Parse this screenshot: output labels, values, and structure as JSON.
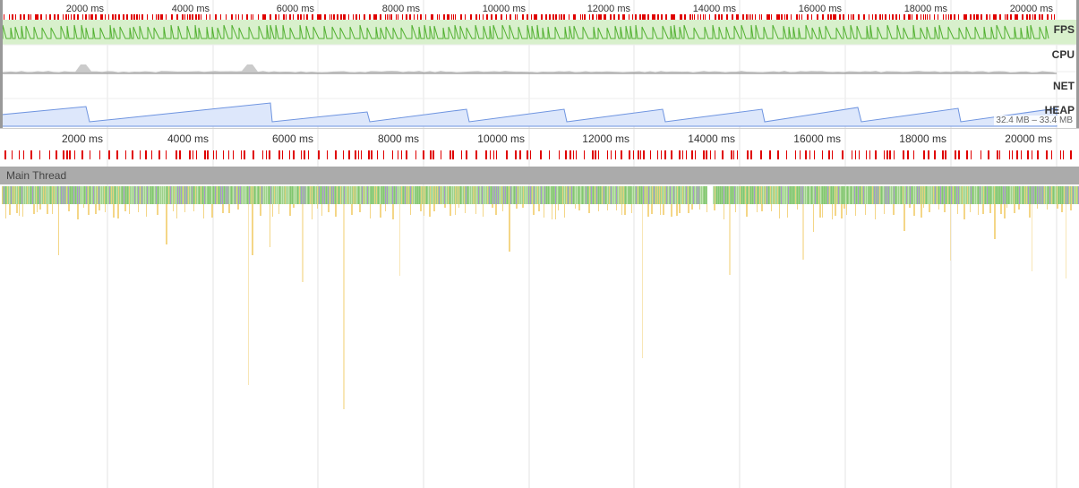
{
  "overview": {
    "ticks": [
      "2000 ms",
      "4000 ms",
      "6000 ms",
      "8000 ms",
      "10000 ms",
      "12000 ms",
      "14000 ms",
      "16000 ms",
      "18000 ms",
      "20000 ms"
    ],
    "tracks": {
      "fps": "FPS",
      "cpu": "CPU",
      "net": "NET",
      "heap": "HEAP"
    },
    "heap_range": "32.4 MB – 33.4 MB",
    "colors": {
      "frames": "#e00000",
      "fps_line": "#51b02f",
      "fps_fill": "#d8f0cc",
      "heap_line": "#6e94e0",
      "heap_fill": "#dde7fb",
      "cpu": "#b5b5b5"
    }
  },
  "main": {
    "ticks": [
      "2000 ms",
      "4000 ms",
      "6000 ms",
      "8000 ms",
      "10000 ms",
      "12000 ms",
      "14000 ms",
      "16000 ms",
      "18000 ms",
      "20000 ms"
    ],
    "thread_title": "Main Thread",
    "colors": {
      "frames": "#e00000",
      "scripting": "#f3d27a",
      "rendering": "#a98bd6",
      "painting": "#7ac56a",
      "activity": "#9ed18b"
    }
  }
}
